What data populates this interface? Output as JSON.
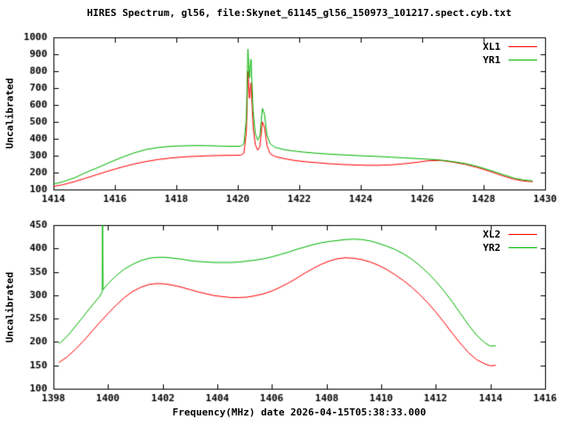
{
  "title": "HIRES Spectrum, gl56, file:Skynet_61145_gl56_150973_101217.spect.cyb.txt",
  "colors": {
    "background": "#ffffff",
    "axis": "#000000",
    "red": "#ff0000",
    "green": "#00b400"
  },
  "chart_data": [
    {
      "type": "line",
      "title": "",
      "xlabel": "",
      "ylabel": "Uncalibrated",
      "xlim": [
        1414,
        1430
      ],
      "ylim": [
        100,
        1000
      ],
      "xticks": [
        1414,
        1416,
        1418,
        1420,
        1422,
        1424,
        1426,
        1428,
        1430
      ],
      "yticks": [
        100,
        200,
        300,
        400,
        500,
        600,
        700,
        800,
        900,
        1000
      ],
      "grid": false,
      "legend_position": "top-right",
      "series": [
        {
          "name": "XL1",
          "color": "#ff0000",
          "points": [
            [
              1414,
              118
            ],
            [
              1414.3,
              128
            ],
            [
              1414.7,
              147
            ],
            [
              1415,
              164
            ],
            [
              1415.4,
              187
            ],
            [
              1415.8,
              210
            ],
            [
              1416.2,
              231
            ],
            [
              1416.6,
              250
            ],
            [
              1417,
              265
            ],
            [
              1417.4,
              277
            ],
            [
              1417.8,
              286
            ],
            [
              1418.2,
              292
            ],
            [
              1418.6,
              296
            ],
            [
              1419,
              299
            ],
            [
              1419.4,
              301
            ],
            [
              1419.8,
              302
            ],
            [
              1420.1,
              303
            ],
            [
              1420.2,
              315
            ],
            [
              1420.28,
              440
            ],
            [
              1420.33,
              800
            ],
            [
              1420.38,
              640
            ],
            [
              1420.43,
              730
            ],
            [
              1420.5,
              470
            ],
            [
              1420.57,
              365
            ],
            [
              1420.65,
              332
            ],
            [
              1420.72,
              355
            ],
            [
              1420.8,
              500
            ],
            [
              1420.87,
              468
            ],
            [
              1420.95,
              360
            ],
            [
              1421.05,
              312
            ],
            [
              1421.2,
              296
            ],
            [
              1421.5,
              283
            ],
            [
              1421.8,
              273
            ],
            [
              1422.2,
              264
            ],
            [
              1422.6,
              258
            ],
            [
              1423,
              252
            ],
            [
              1423.4,
              248
            ],
            [
              1423.8,
              245
            ],
            [
              1424.2,
              243
            ],
            [
              1424.6,
              243
            ],
            [
              1425,
              246
            ],
            [
              1425.4,
              252
            ],
            [
              1425.8,
              260
            ],
            [
              1426.2,
              270
            ],
            [
              1426.6,
              272
            ],
            [
              1427,
              262
            ],
            [
              1427.4,
              249
            ],
            [
              1427.8,
              230
            ],
            [
              1428.2,
              207
            ],
            [
              1428.6,
              182
            ],
            [
              1429,
              160
            ],
            [
              1429.3,
              150
            ],
            [
              1429.6,
              146
            ]
          ]
        },
        {
          "name": "YR1",
          "color": "#00b400",
          "points": [
            [
              1414,
              132
            ],
            [
              1414.3,
              145
            ],
            [
              1414.7,
              170
            ],
            [
              1415,
              196
            ],
            [
              1415.4,
              226
            ],
            [
              1415.8,
              258
            ],
            [
              1416.2,
              288
            ],
            [
              1416.6,
              315
            ],
            [
              1417,
              336
            ],
            [
              1417.4,
              348
            ],
            [
              1417.8,
              355
            ],
            [
              1418.2,
              358
            ],
            [
              1418.6,
              360
            ],
            [
              1419,
              359
            ],
            [
              1419.4,
              357
            ],
            [
              1419.8,
              355
            ],
            [
              1420.1,
              356
            ],
            [
              1420.2,
              372
            ],
            [
              1420.28,
              520
            ],
            [
              1420.33,
              930
            ],
            [
              1420.38,
              760
            ],
            [
              1420.43,
              870
            ],
            [
              1420.5,
              560
            ],
            [
              1420.57,
              430
            ],
            [
              1420.65,
              392
            ],
            [
              1420.72,
              420
            ],
            [
              1420.8,
              580
            ],
            [
              1420.87,
              545
            ],
            [
              1420.95,
              420
            ],
            [
              1421.05,
              372
            ],
            [
              1421.2,
              350
            ],
            [
              1421.5,
              336
            ],
            [
              1421.8,
              328
            ],
            [
              1422.2,
              320
            ],
            [
              1422.6,
              314
            ],
            [
              1423,
              309
            ],
            [
              1423.4,
              305
            ],
            [
              1423.8,
              301
            ],
            [
              1424.2,
              298
            ],
            [
              1424.6,
              295
            ],
            [
              1425,
              291
            ],
            [
              1425.4,
              287
            ],
            [
              1425.8,
              283
            ],
            [
              1426.2,
              279
            ],
            [
              1426.6,
              274
            ],
            [
              1427,
              265
            ],
            [
              1427.4,
              253
            ],
            [
              1427.8,
              236
            ],
            [
              1428.2,
              214
            ],
            [
              1428.6,
              190
            ],
            [
              1429,
              167
            ],
            [
              1429.3,
              156
            ],
            [
              1429.6,
              151
            ]
          ]
        }
      ]
    },
    {
      "type": "line",
      "title": "",
      "xlabel": "Frequency(MHz) date 2026-04-15T05:38:33.000",
      "ylabel": "Uncalibrated",
      "xlim": [
        1398,
        1416
      ],
      "ylim": [
        100,
        450
      ],
      "xticks": [
        1398,
        1400,
        1402,
        1404,
        1406,
        1408,
        1410,
        1412,
        1414,
        1416
      ],
      "yticks": [
        100,
        150,
        200,
        250,
        300,
        350,
        400,
        450
      ],
      "grid": false,
      "legend_position": "top-right",
      "series": [
        {
          "name": "XL2",
          "color": "#ff0000",
          "points": [
            [
              1398.2,
              156
            ],
            [
              1398.5,
              168
            ],
            [
              1398.8,
              184
            ],
            [
              1399.1,
              202
            ],
            [
              1399.4,
              222
            ],
            [
              1399.7,
              242
            ],
            [
              1400,
              261
            ],
            [
              1400.3,
              279
            ],
            [
              1400.6,
              295
            ],
            [
              1400.9,
              308
            ],
            [
              1401.2,
              317
            ],
            [
              1401.5,
              323
            ],
            [
              1401.8,
              325
            ],
            [
              1402.1,
              324
            ],
            [
              1402.4,
              321
            ],
            [
              1402.7,
              317
            ],
            [
              1403,
              312
            ],
            [
              1403.3,
              307
            ],
            [
              1403.6,
              303
            ],
            [
              1403.9,
              299
            ],
            [
              1404.2,
              297
            ],
            [
              1404.5,
              295
            ],
            [
              1404.8,
              295
            ],
            [
              1405.1,
              296
            ],
            [
              1405.4,
              299
            ],
            [
              1405.7,
              303
            ],
            [
              1406,
              309
            ],
            [
              1406.3,
              317
            ],
            [
              1406.6,
              326
            ],
            [
              1406.9,
              336
            ],
            [
              1407.2,
              347
            ],
            [
              1407.5,
              357
            ],
            [
              1407.8,
              366
            ],
            [
              1408.1,
              373
            ],
            [
              1408.4,
              378
            ],
            [
              1408.7,
              380
            ],
            [
              1409,
              379
            ],
            [
              1409.3,
              376
            ],
            [
              1409.6,
              371
            ],
            [
              1409.9,
              364
            ],
            [
              1410.2,
              355
            ],
            [
              1410.5,
              344
            ],
            [
              1410.8,
              332
            ],
            [
              1411.1,
              318
            ],
            [
              1411.4,
              302
            ],
            [
              1411.7,
              284
            ],
            [
              1412,
              264
            ],
            [
              1412.3,
              242
            ],
            [
              1412.6,
              219
            ],
            [
              1412.9,
              197
            ],
            [
              1413.2,
              177
            ],
            [
              1413.5,
              162
            ],
            [
              1413.8,
              153
            ],
            [
              1414,
              149
            ],
            [
              1414.2,
              150
            ]
          ]
        },
        {
          "name": "YR2",
          "color": "#00b400",
          "points": [
            [
              1398.2,
              196
            ],
            [
              1398.5,
              212
            ],
            [
              1398.8,
              233
            ],
            [
              1399.1,
              255
            ],
            [
              1399.4,
              277
            ],
            [
              1399.7,
              298
            ],
            [
              1399.79,
              308
            ],
            [
              1399.8,
              450
            ],
            [
              1399.82,
              312
            ],
            [
              1400,
              325
            ],
            [
              1400.3,
              342
            ],
            [
              1400.6,
              356
            ],
            [
              1400.9,
              366
            ],
            [
              1401.2,
              374
            ],
            [
              1401.5,
              379
            ],
            [
              1401.8,
              381
            ],
            [
              1402.1,
              381
            ],
            [
              1402.4,
              379
            ],
            [
              1402.7,
              377
            ],
            [
              1403,
              374
            ],
            [
              1403.3,
              372
            ],
            [
              1403.6,
              371
            ],
            [
              1403.9,
              370
            ],
            [
              1404.2,
              370
            ],
            [
              1404.5,
              370
            ],
            [
              1404.8,
              371
            ],
            [
              1405.1,
              373
            ],
            [
              1405.4,
              375
            ],
            [
              1405.7,
              378
            ],
            [
              1406,
              382
            ],
            [
              1406.3,
              387
            ],
            [
              1406.6,
              392
            ],
            [
              1406.9,
              398
            ],
            [
              1407.2,
              403
            ],
            [
              1407.5,
              408
            ],
            [
              1407.8,
              412
            ],
            [
              1408.1,
              415
            ],
            [
              1408.4,
              417
            ],
            [
              1408.7,
              419
            ],
            [
              1409,
              420
            ],
            [
              1409.3,
              419
            ],
            [
              1409.6,
              416
            ],
            [
              1409.9,
              411
            ],
            [
              1410.2,
              405
            ],
            [
              1410.5,
              398
            ],
            [
              1410.8,
              389
            ],
            [
              1411.1,
              378
            ],
            [
              1411.4,
              364
            ],
            [
              1411.7,
              348
            ],
            [
              1412,
              330
            ],
            [
              1412.3,
              309
            ],
            [
              1412.6,
              286
            ],
            [
              1412.9,
              261
            ],
            [
              1413.2,
              236
            ],
            [
              1413.5,
              214
            ],
            [
              1413.8,
              198
            ],
            [
              1414,
              191
            ],
            [
              1414.2,
              192
            ]
          ]
        }
      ]
    }
  ]
}
